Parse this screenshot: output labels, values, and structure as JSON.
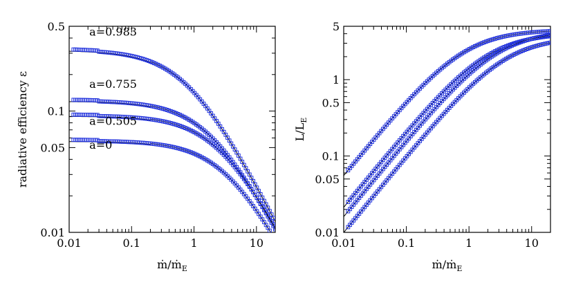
{
  "chart_data": [
    {
      "type": "scatter",
      "xlabel_parts": [
        "ṁ/ṁ",
        "E"
      ],
      "ylabel": "radiative efficiency ε",
      "xscale": "log",
      "yscale": "log",
      "xlim": [
        0.01,
        20
      ],
      "ylim": [
        0.01,
        0.5
      ],
      "x_ticks": [
        {
          "v": 0.01,
          "label": "0.01"
        },
        {
          "v": 0.1,
          "label": "0.1"
        },
        {
          "v": 1,
          "label": "1"
        },
        {
          "v": 10,
          "label": "10"
        }
      ],
      "y_ticks": [
        {
          "v": 0.01,
          "label": "0.01"
        },
        {
          "v": 0.05,
          "label": "0.05"
        },
        {
          "v": 0.1,
          "label": "0.1"
        },
        {
          "v": 0.5,
          "label": "0.5"
        }
      ],
      "series": [
        {
          "name": "a=0.983",
          "label_at": [
            0.02,
            0.42
          ],
          "eps0": 0.32,
          "mdot_c": 0.8,
          "marker": "open-square",
          "fit": "line"
        },
        {
          "name": "a=0.755",
          "label_at": [
            0.02,
            0.155
          ],
          "eps0": 0.122,
          "mdot_c": 1.9,
          "marker": "open-square",
          "fit": "line"
        },
        {
          "name": "a=0.505",
          "label_at": [
            0.02,
            0.077
          ],
          "eps0": 0.092,
          "mdot_c": 2.7,
          "marker": "open-square",
          "fit": "line"
        },
        {
          "name": "a=0",
          "label_at": [
            0.02,
            0.049
          ],
          "eps0": 0.057,
          "mdot_c": 3.6,
          "marker": "open-square",
          "fit": "line"
        }
      ]
    },
    {
      "type": "scatter",
      "xlabel_parts": [
        "ṁ/ṁ",
        "E"
      ],
      "ylabel_parts": [
        "L/L",
        "E"
      ],
      "xscale": "log",
      "yscale": "log",
      "xlim": [
        0.01,
        20
      ],
      "ylim": [
        0.01,
        5
      ],
      "x_ticks": [
        {
          "v": 0.01,
          "label": "0.01"
        },
        {
          "v": 0.1,
          "label": "0.1"
        },
        {
          "v": 1,
          "label": "1"
        },
        {
          "v": 10,
          "label": "10"
        }
      ],
      "y_ticks": [
        {
          "v": 0.01,
          "label": "0.01"
        },
        {
          "v": 0.05,
          "label": "0.05"
        },
        {
          "v": 0.1,
          "label": "0.1"
        },
        {
          "v": 0.5,
          "label": "0.5"
        },
        {
          "v": 1,
          "label": "1"
        },
        {
          "v": 5,
          "label": "5"
        }
      ],
      "series": [
        {
          "name": "a=0.983",
          "eps0": 0.32,
          "mdot_c": 0.8,
          "marker": "open-square",
          "fit": "line"
        },
        {
          "name": "a=0.755",
          "eps0": 0.122,
          "mdot_c": 1.9,
          "marker": "open-square",
          "fit": "line"
        },
        {
          "name": "a=0.505",
          "eps0": 0.092,
          "mdot_c": 2.7,
          "marker": "open-square",
          "fit": "line"
        },
        {
          "name": "a=0",
          "eps0": 0.057,
          "mdot_c": 3.6,
          "marker": "open-square",
          "fit": "line"
        }
      ]
    }
  ]
}
